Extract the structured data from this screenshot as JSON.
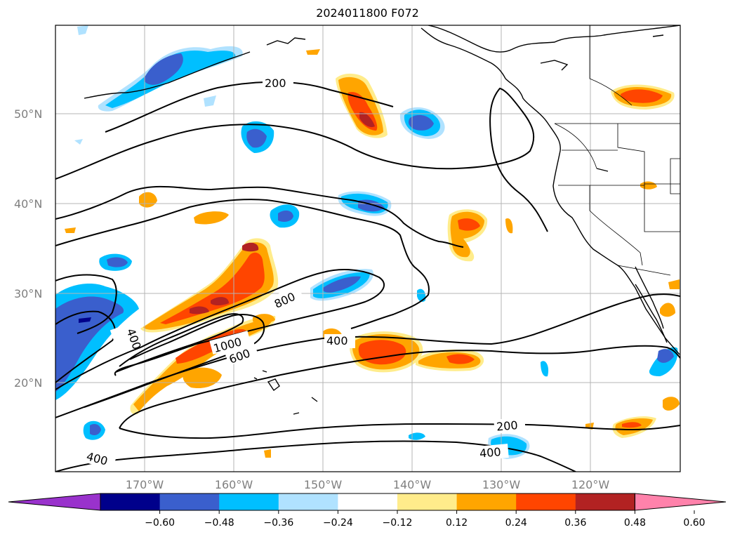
{
  "title": "2024011800 F072",
  "map": {
    "lat_labels": [
      "50°N",
      "40°N",
      "30°N",
      "20°N"
    ],
    "lon_labels": [
      "170°W",
      "160°W",
      "150°W",
      "140°W",
      "130°W",
      "120°W"
    ],
    "contour_labels": [
      "200",
      "400",
      "600",
      "800",
      "1000",
      "400",
      "200",
      "400",
      "400"
    ]
  },
  "colorbar": {
    "ticks": [
      "−0.60",
      "−0.48",
      "−0.36",
      "−0.24",
      "−0.12",
      "0.12",
      "0.24",
      "0.36",
      "0.48",
      "0.60"
    ],
    "colors": [
      "#9932cc",
      "#00008b",
      "#3a5fcd",
      "#00bfff",
      "#b0e2ff",
      "#ffffff",
      "#ffec8b",
      "#ffa500",
      "#ff4500",
      "#b22222",
      "#ff82ab"
    ]
  },
  "palette": {
    "strong_neg": "#00008b",
    "mid_neg": "#3a5fcd",
    "neg": "#00bfff",
    "weak_neg": "#b0e2ff",
    "weak_pos": "#ffec8b",
    "pos": "#ffa500",
    "mid_pos": "#ff4500",
    "strong_pos": "#b22222"
  }
}
